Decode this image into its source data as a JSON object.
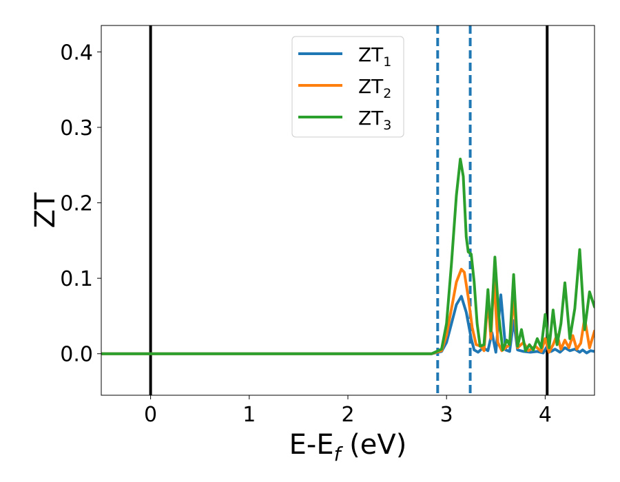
{
  "chart_data": {
    "type": "line",
    "xlabel": "E-E",
    "xlabel_sub": "f",
    "xlabel_unit": " (eV)",
    "ylabel": "ZT",
    "xlim": [
      -0.5,
      4.5
    ],
    "ylim": [
      -0.055,
      0.435
    ],
    "x_ticks": [
      0,
      1,
      2,
      3,
      4
    ],
    "x_tick_labels": [
      "0",
      "1",
      "2",
      "3",
      "4"
    ],
    "y_ticks": [
      0.0,
      0.1,
      0.2,
      0.3,
      0.4
    ],
    "y_tick_labels": [
      "0.0",
      "0.1",
      "0.2",
      "0.3",
      "0.4"
    ],
    "grid": false,
    "legend_position": "top-center",
    "vertical_lines": [
      {
        "x": 0.0,
        "style": "solid",
        "color": "#000000"
      },
      {
        "x": 4.02,
        "style": "solid",
        "color": "#000000"
      },
      {
        "x": 2.91,
        "style": "dashed",
        "color": "#1f77b4"
      },
      {
        "x": 3.24,
        "style": "dashed",
        "color": "#1f77b4"
      }
    ],
    "series": [
      {
        "name": "ZT",
        "name_sub": "1",
        "color": "#1f77b4",
        "x": [
          -0.5,
          2.85,
          2.95,
          3.0,
          3.05,
          3.1,
          3.15,
          3.2,
          3.25,
          3.28,
          3.32,
          3.37,
          3.42,
          3.46,
          3.5,
          3.55,
          3.6,
          3.64,
          3.68,
          3.72,
          3.78,
          3.85,
          3.92,
          3.98,
          4.02,
          4.06,
          4.1,
          4.15,
          4.2,
          4.25,
          4.3,
          4.35,
          4.38,
          4.42,
          4.46,
          4.5
        ],
        "y": [
          0.0,
          0.0,
          0.003,
          0.015,
          0.04,
          0.065,
          0.076,
          0.055,
          0.02,
          0.005,
          0.002,
          0.008,
          0.004,
          0.028,
          0.002,
          0.078,
          0.005,
          0.003,
          0.044,
          0.005,
          0.003,
          0.002,
          0.003,
          0.001,
          0.01,
          0.003,
          0.006,
          0.002,
          0.008,
          0.004,
          0.006,
          0.002,
          0.005,
          0.001,
          0.004,
          0.003
        ]
      },
      {
        "name": "ZT",
        "name_sub": "2",
        "color": "#ff7f0e",
        "x": [
          -0.5,
          2.85,
          2.95,
          3.0,
          3.05,
          3.1,
          3.15,
          3.18,
          3.22,
          3.26,
          3.3,
          3.35,
          3.38,
          3.42,
          3.45,
          3.48,
          3.52,
          3.56,
          3.6,
          3.64,
          3.68,
          3.72,
          3.78,
          3.83,
          3.9,
          3.96,
          4.0,
          4.04,
          4.08,
          4.12,
          4.16,
          4.2,
          4.24,
          4.28,
          4.32,
          4.36,
          4.4,
          4.45,
          4.5
        ],
        "y": [
          0.0,
          0.0,
          0.004,
          0.025,
          0.06,
          0.095,
          0.112,
          0.108,
          0.075,
          0.035,
          0.012,
          0.01,
          0.004,
          0.072,
          0.02,
          0.1,
          0.015,
          0.004,
          0.008,
          0.012,
          0.074,
          0.008,
          0.015,
          0.004,
          0.01,
          0.003,
          0.02,
          0.002,
          0.012,
          0.025,
          0.006,
          0.018,
          0.008,
          0.024,
          0.006,
          0.014,
          0.047,
          0.008,
          0.03
        ]
      },
      {
        "name": "ZT",
        "name_sub": "3",
        "color": "#2ca02c",
        "x": [
          -0.5,
          2.85,
          2.95,
          3.0,
          3.05,
          3.1,
          3.14,
          3.17,
          3.2,
          3.22,
          3.25,
          3.28,
          3.31,
          3.34,
          3.38,
          3.42,
          3.45,
          3.49,
          3.53,
          3.57,
          3.61,
          3.64,
          3.68,
          3.72,
          3.76,
          3.8,
          3.84,
          3.88,
          3.92,
          3.96,
          4.0,
          4.04,
          4.08,
          4.12,
          4.16,
          4.2,
          4.25,
          4.3,
          4.35,
          4.4,
          4.45,
          4.5
        ],
        "y": [
          0.0,
          0.0,
          0.006,
          0.04,
          0.12,
          0.21,
          0.258,
          0.235,
          0.155,
          0.135,
          0.132,
          0.095,
          0.04,
          0.01,
          0.012,
          0.085,
          0.03,
          0.128,
          0.05,
          0.005,
          0.018,
          0.012,
          0.105,
          0.01,
          0.032,
          0.004,
          0.012,
          0.005,
          0.02,
          0.008,
          0.052,
          0.008,
          0.058,
          0.012,
          0.04,
          0.094,
          0.02,
          0.06,
          0.138,
          0.032,
          0.082,
          0.062
        ]
      }
    ]
  }
}
